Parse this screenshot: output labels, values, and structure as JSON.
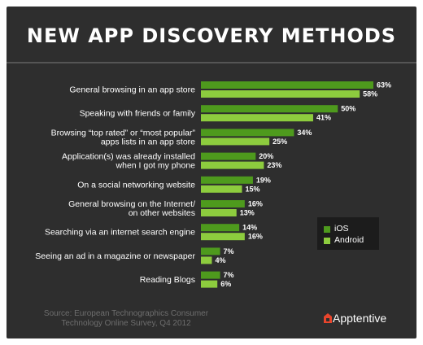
{
  "title": "NEW APP DISCOVERY METHODS",
  "colors": {
    "ios": "#4e9a1d",
    "android": "#8dcc3e",
    "background": "#2e2e2e",
    "accent_logo": "#e8452c"
  },
  "legend": {
    "ios_label": "iOS",
    "android_label": "Android"
  },
  "source": {
    "line1": "Source: European Technographics Consumer",
    "line2": "Technology Online Survey, Q4 2012"
  },
  "logo": {
    "icon": "apptentive-logo-icon",
    "text": "Apptentive"
  },
  "chart_data": {
    "type": "bar",
    "orientation": "horizontal",
    "title": "NEW APP DISCOVERY METHODS",
    "categories": [
      [
        "General browsing in an app store"
      ],
      [
        "Speaking with friends or family"
      ],
      [
        "Browsing “top rated” or “most popular”",
        "apps lists in an app store"
      ],
      [
        "Application(s) was already installed",
        "when I got my phone"
      ],
      [
        "On a social networking website"
      ],
      [
        "General browsing on the Internet/",
        "on other websites"
      ],
      [
        "Searching via an internet search engine"
      ],
      [
        "Seeing an ad in a magazine or newspaper"
      ],
      [
        "Reading Blogs"
      ]
    ],
    "series": [
      {
        "name": "iOS",
        "values": [
          63,
          50,
          34,
          20,
          19,
          16,
          14,
          7,
          7
        ]
      },
      {
        "name": "Android",
        "values": [
          58,
          41,
          25,
          23,
          15,
          13,
          16,
          4,
          6
        ]
      }
    ],
    "value_suffix": "%",
    "xlim": [
      0,
      63
    ],
    "grid": false,
    "legend_position": "right"
  }
}
